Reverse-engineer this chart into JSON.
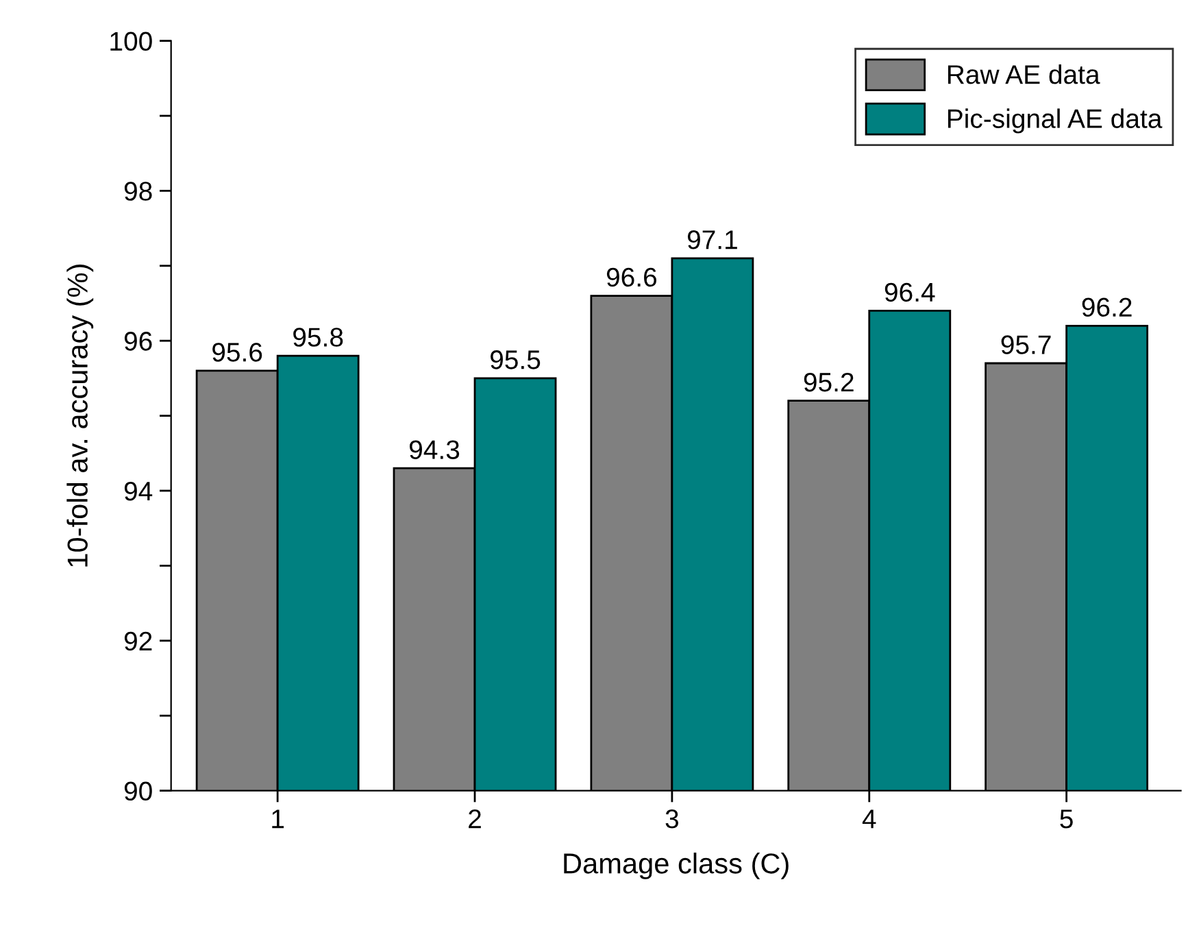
{
  "chart_data": {
    "type": "bar",
    "xlabel": "Damage class (C)",
    "ylabel": "10-fold av. accuracy (%)",
    "categories": [
      "1",
      "2",
      "3",
      "4",
      "5"
    ],
    "series": [
      {
        "name": "Raw AE data",
        "color": "#808080",
        "values": [
          95.6,
          94.3,
          96.6,
          95.2,
          95.7
        ]
      },
      {
        "name": "Pic-signal AE data",
        "color": "#008080",
        "values": [
          95.8,
          95.5,
          97.1,
          96.4,
          96.2
        ]
      }
    ],
    "ylim": [
      90,
      100
    ],
    "yticks": [
      90,
      {
        "value": 91,
        "label": null
      },
      92,
      {
        "value": 93,
        "label": null
      },
      94,
      {
        "value": 95,
        "label": null
      },
      96,
      {
        "value": 97,
        "label": null
      },
      98,
      {
        "value": 99,
        "label": null
      },
      100
    ],
    "data_labels": true,
    "legend": "top right",
    "grid": false
  }
}
